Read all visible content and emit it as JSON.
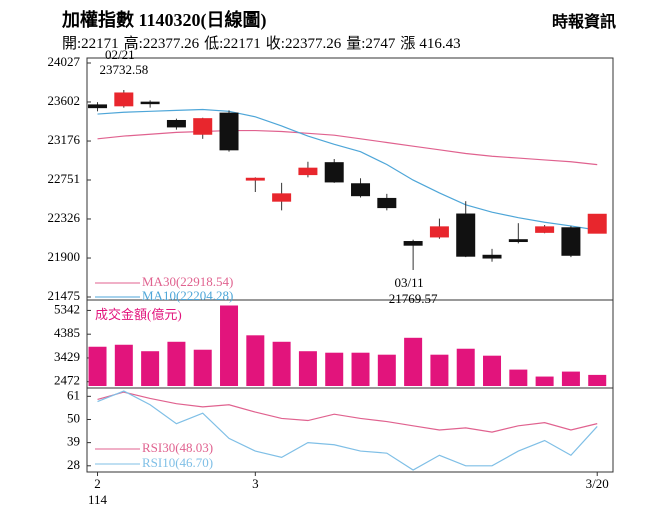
{
  "header": {
    "title": "加權指數 1140320(日線圖)",
    "source": "時報資訊",
    "stats": [
      {
        "label": "開:",
        "value": 22171
      },
      {
        "label": "高:",
        "value": 22377.26
      },
      {
        "label": "低:",
        "value": 22171
      },
      {
        "label": "收:",
        "value": 22377.26
      },
      {
        "label": "量:",
        "value": 2747
      },
      {
        "label": "漲",
        "value": 416.43
      }
    ]
  },
  "chart_data": [
    {
      "type": "candlestick",
      "up_color": "#e8262d",
      "down_color": "#111111",
      "open": [
        23570,
        23560,
        23600,
        23400,
        23250,
        23480,
        22750,
        22520,
        22810,
        22940,
        22710,
        22550,
        22080,
        22130,
        22380,
        21930,
        22100,
        22180,
        22230,
        22171
      ],
      "close": [
        23540,
        23700,
        23590,
        23330,
        23420,
        23080,
        22770,
        22600,
        22880,
        22730,
        22580,
        22450,
        22040,
        22240,
        21920,
        21900,
        22080,
        22240,
        21930,
        22377.26
      ],
      "high": [
        23600,
        23732.58,
        23620,
        23420,
        23430,
        23510,
        22780,
        22720,
        22950,
        22980,
        22770,
        22600,
        22100,
        22330,
        22520,
        22000,
        22280,
        22260,
        22250,
        22377.26
      ],
      "low": [
        23500,
        23540,
        23540,
        23300,
        23200,
        23060,
        22620,
        22420,
        22780,
        22720,
        22560,
        22420,
        21769.57,
        22110,
        21910,
        21860,
        22060,
        22170,
        21910,
        22171
      ],
      "series": [
        {
          "name": "MA30(22918.54)",
          "color": "#e0628f",
          "values": [
            23200,
            23230,
            23250,
            23270,
            23280,
            23290,
            23290,
            23280,
            23260,
            23240,
            23200,
            23160,
            23120,
            23080,
            23040,
            23010,
            22990,
            22970,
            22950,
            22918.54
          ]
        },
        {
          "name": "MA10(22204.28)",
          "color": "#4ea6d8",
          "values": [
            23470,
            23490,
            23500,
            23510,
            23520,
            23500,
            23440,
            23340,
            23230,
            23140,
            23060,
            22920,
            22750,
            22610,
            22480,
            22400,
            22340,
            22290,
            22250,
            22204.28
          ]
        }
      ],
      "ylim": [
        21475,
        24027
      ],
      "yticks": [
        24027,
        23602,
        23176,
        22751,
        22326,
        21900,
        21475
      ],
      "annotations": [
        {
          "text": "02/21",
          "value": 23732.58
        },
        {
          "text": "03/11",
          "value": 21769.57
        }
      ]
    },
    {
      "type": "bar",
      "title": "成交金額(億元)",
      "color": "#e2147c",
      "values": [
        3880,
        3960,
        3700,
        4080,
        3760,
        5540,
        4340,
        4080,
        3700,
        3640,
        3640,
        3560,
        4240,
        3560,
        3800,
        3520,
        2960,
        2680,
        2880,
        2747
      ],
      "ylim": [
        2300,
        5560
      ],
      "yticks": [
        5342,
        4385,
        3429,
        2472
      ]
    },
    {
      "type": "line",
      "categories": [
        "2",
        null,
        null,
        null,
        null,
        null,
        "3",
        null,
        null,
        null,
        null,
        null,
        null,
        null,
        null,
        null,
        null,
        null,
        null,
        "3/20"
      ],
      "year_label": "114",
      "series": [
        {
          "name": "RSI30(48.03)",
          "color": "#e0628f",
          "values": [
            59.5,
            63,
            60,
            57.5,
            56,
            57,
            53.5,
            50.5,
            49.5,
            52.5,
            50.5,
            49,
            47,
            45,
            46,
            44,
            47,
            48.5,
            45,
            48.03
          ]
        },
        {
          "name": "RSI10(46.70)",
          "color": "#7fbfe6",
          "values": [
            58.5,
            63.5,
            57,
            48,
            53,
            41,
            35,
            32,
            39,
            38,
            35,
            34,
            26,
            33,
            28,
            28,
            35,
            40,
            33,
            46.7
          ]
        }
      ],
      "ylim": [
        26,
        64
      ],
      "yticks": [
        61,
        50,
        39,
        28
      ]
    }
  ]
}
